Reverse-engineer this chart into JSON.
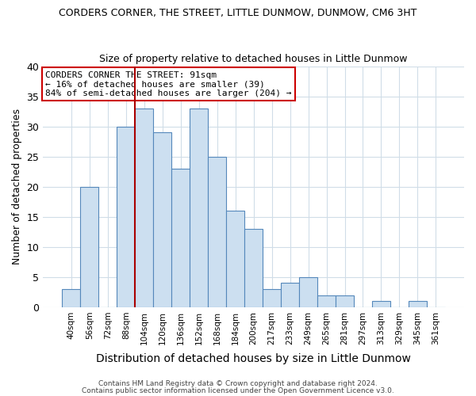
{
  "title": "CORDERS CORNER, THE STREET, LITTLE DUNMOW, DUNMOW, CM6 3HT",
  "subtitle": "Size of property relative to detached houses in Little Dunmow",
  "xlabel": "Distribution of detached houses by size in Little Dunmow",
  "ylabel": "Number of detached properties",
  "bin_labels": [
    "40sqm",
    "56sqm",
    "72sqm",
    "88sqm",
    "104sqm",
    "120sqm",
    "136sqm",
    "152sqm",
    "168sqm",
    "184sqm",
    "200sqm",
    "217sqm",
    "233sqm",
    "249sqm",
    "265sqm",
    "281sqm",
    "297sqm",
    "313sqm",
    "329sqm",
    "345sqm",
    "361sqm"
  ],
  "bar_values": [
    3,
    20,
    0,
    30,
    33,
    29,
    23,
    33,
    25,
    16,
    13,
    3,
    4,
    5,
    2,
    2,
    0,
    1,
    0,
    1,
    0
  ],
  "bar_color": "#ccdff0",
  "bar_edgecolor": "#5588bb",
  "marker_line_color": "#aa0000",
  "annotation_line1": "CORDERS CORNER THE STREET: 91sqm",
  "annotation_line2": "← 16% of detached houses are smaller (39)",
  "annotation_line3": "84% of semi-detached houses are larger (204) →",
  "annotation_box_edgecolor": "#cc0000",
  "ylim": [
    0,
    40
  ],
  "yticks": [
    0,
    5,
    10,
    15,
    20,
    25,
    30,
    35,
    40
  ],
  "footer1": "Contains HM Land Registry data © Crown copyright and database right 2024.",
  "footer2": "Contains public sector information licensed under the Open Government Licence v3.0.",
  "background_color": "#ffffff",
  "plot_background": "#ffffff",
  "grid_color": "#d0dde8"
}
